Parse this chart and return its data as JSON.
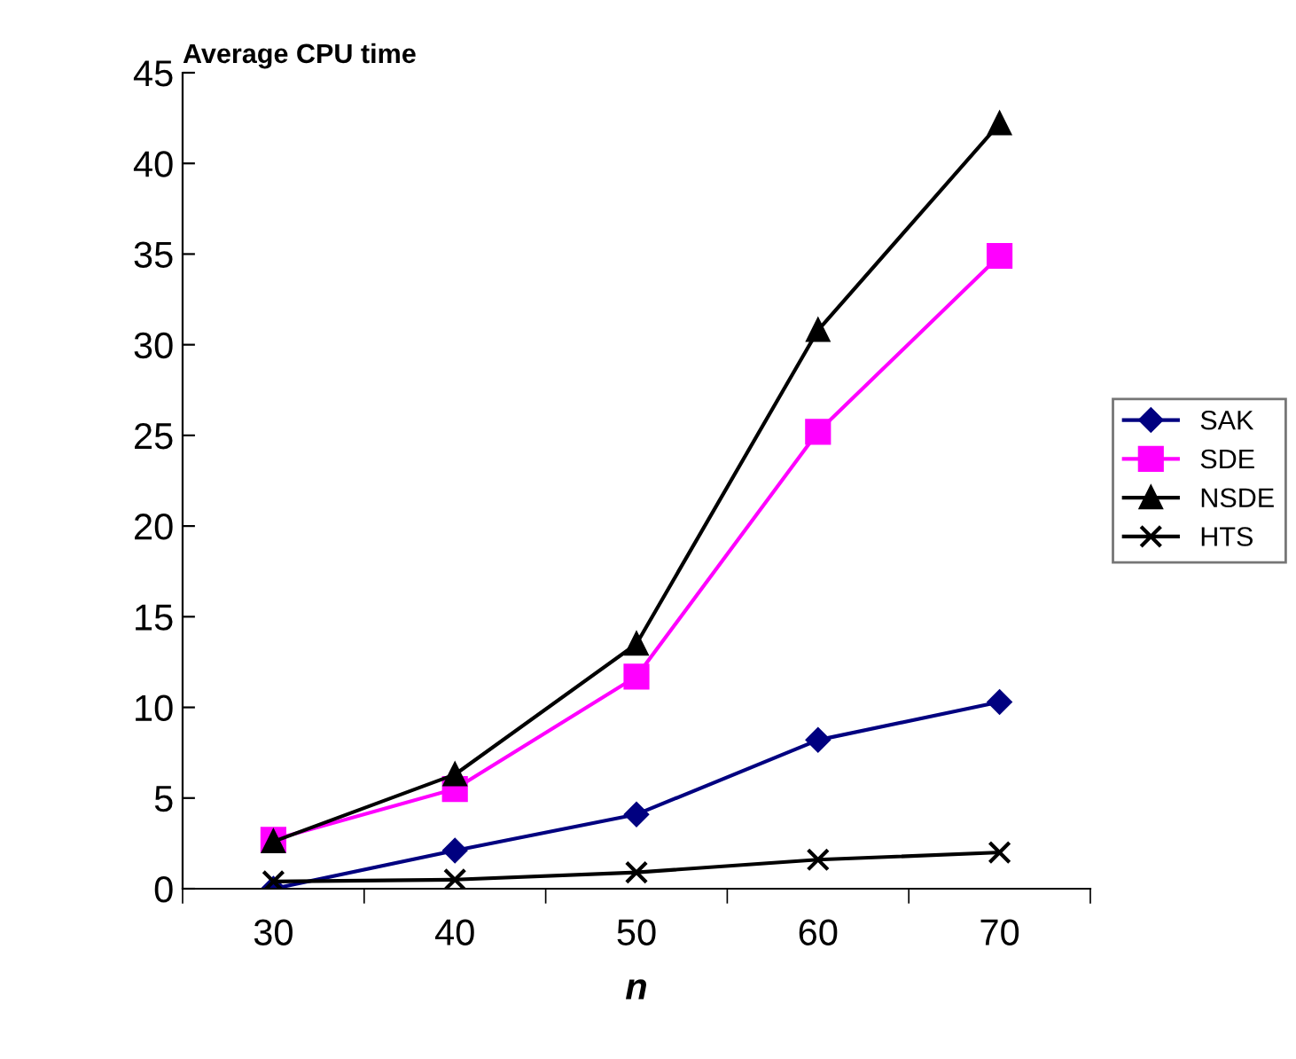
{
  "chart_data": {
    "type": "line",
    "title": "Average CPU time",
    "xlabel": "n",
    "categories": [
      "30",
      "40",
      "50",
      "60",
      "70"
    ],
    "series": [
      {
        "name": "SAK",
        "color": "#000080",
        "marker": "diamond",
        "values": [
          0,
          2.1,
          4.1,
          8.2,
          10.3
        ]
      },
      {
        "name": "SDE",
        "color": "#ff00ff",
        "marker": "square",
        "values": [
          2.7,
          5.5,
          11.7,
          25.2,
          34.9
        ]
      },
      {
        "name": "NSDE",
        "color": "#000000",
        "marker": "triangle",
        "values": [
          2.6,
          6.3,
          13.5,
          30.8,
          42.2
        ]
      },
      {
        "name": "HTS",
        "color": "#000000",
        "marker": "cross",
        "values": [
          0.4,
          0.5,
          0.9,
          1.6,
          2.0
        ]
      }
    ],
    "ylim": [
      0,
      45
    ],
    "yticks": [
      0,
      5,
      10,
      15,
      20,
      25,
      30,
      35,
      40,
      45
    ],
    "grid": false,
    "legend": "right",
    "line_style": "solid"
  }
}
